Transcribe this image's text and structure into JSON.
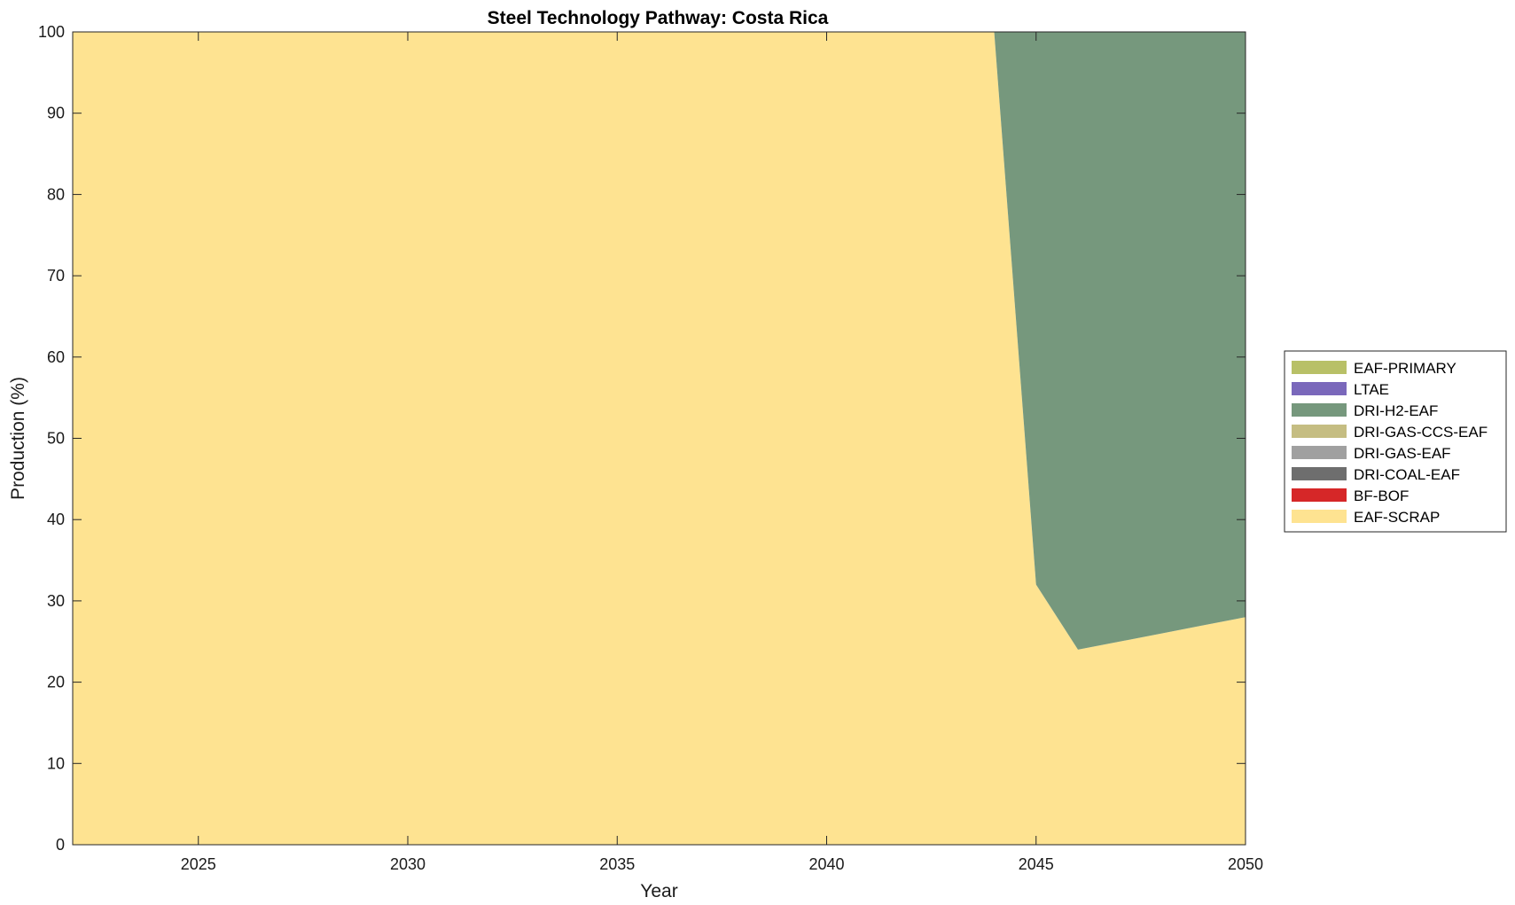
{
  "chart_data": {
    "type": "area",
    "stacked": true,
    "title": "Steel Technology Pathway: Costa Rica",
    "xlabel": "Year",
    "ylabel": "Production (%)",
    "xlim": [
      2022,
      2050
    ],
    "ylim": [
      0,
      100
    ],
    "xticks": [
      2025,
      2030,
      2035,
      2040,
      2045,
      2050
    ],
    "yticks": [
      0,
      10,
      20,
      30,
      40,
      50,
      60,
      70,
      80,
      90,
      100
    ],
    "grid": false,
    "legend_position": "right",
    "x": [
      2022,
      2023,
      2024,
      2025,
      2026,
      2027,
      2028,
      2029,
      2030,
      2031,
      2032,
      2033,
      2034,
      2035,
      2036,
      2037,
      2038,
      2039,
      2040,
      2041,
      2042,
      2043,
      2044,
      2045,
      2046,
      2047,
      2048,
      2049,
      2050
    ],
    "series": [
      {
        "name": "EAF-SCRAP",
        "color": "#fee391",
        "values": [
          100,
          100,
          100,
          100,
          100,
          100,
          100,
          100,
          100,
          100,
          100,
          100,
          100,
          100,
          100,
          100,
          100,
          100,
          100,
          100,
          100,
          100,
          100,
          32,
          24,
          25,
          26,
          27,
          28
        ]
      },
      {
        "name": "BF-BOF",
        "color": "#d62728",
        "values": [
          0,
          0,
          0,
          0,
          0,
          0,
          0,
          0,
          0,
          0,
          0,
          0,
          0,
          0,
          0,
          0,
          0,
          0,
          0,
          0,
          0,
          0,
          0,
          0,
          0,
          0,
          0,
          0,
          0
        ]
      },
      {
        "name": "DRI-COAL-EAF",
        "color": "#6e6e6e",
        "values": [
          0,
          0,
          0,
          0,
          0,
          0,
          0,
          0,
          0,
          0,
          0,
          0,
          0,
          0,
          0,
          0,
          0,
          0,
          0,
          0,
          0,
          0,
          0,
          0,
          0,
          0,
          0,
          0,
          0
        ]
      },
      {
        "name": "DRI-GAS-EAF",
        "color": "#a0a0a0",
        "values": [
          0,
          0,
          0,
          0,
          0,
          0,
          0,
          0,
          0,
          0,
          0,
          0,
          0,
          0,
          0,
          0,
          0,
          0,
          0,
          0,
          0,
          0,
          0,
          0,
          0,
          0,
          0,
          0,
          0
        ]
      },
      {
        "name": "DRI-GAS-CCS-EAF",
        "color": "#c5bd82",
        "values": [
          0,
          0,
          0,
          0,
          0,
          0,
          0,
          0,
          0,
          0,
          0,
          0,
          0,
          0,
          0,
          0,
          0,
          0,
          0,
          0,
          0,
          0,
          0,
          0,
          0,
          0,
          0,
          0,
          0
        ]
      },
      {
        "name": "DRI-H2-EAF",
        "color": "#76987d",
        "values": [
          0,
          0,
          0,
          0,
          0,
          0,
          0,
          0,
          0,
          0,
          0,
          0,
          0,
          0,
          0,
          0,
          0,
          0,
          0,
          0,
          0,
          0,
          0,
          68,
          76,
          75,
          74,
          73,
          72
        ]
      },
      {
        "name": "LTAE",
        "color": "#7a68bb",
        "values": [
          0,
          0,
          0,
          0,
          0,
          0,
          0,
          0,
          0,
          0,
          0,
          0,
          0,
          0,
          0,
          0,
          0,
          0,
          0,
          0,
          0,
          0,
          0,
          0,
          0,
          0,
          0,
          0,
          0
        ]
      },
      {
        "name": "EAF-PRIMARY",
        "color": "#b8c067",
        "values": [
          0,
          0,
          0,
          0,
          0,
          0,
          0,
          0,
          0,
          0,
          0,
          0,
          0,
          0,
          0,
          0,
          0,
          0,
          0,
          0,
          0,
          0,
          0,
          0,
          0,
          0,
          0,
          0,
          0
        ]
      }
    ],
    "legend_order": [
      "EAF-PRIMARY",
      "LTAE",
      "DRI-H2-EAF",
      "DRI-GAS-CCS-EAF",
      "DRI-GAS-EAF",
      "DRI-COAL-EAF",
      "BF-BOF",
      "EAF-SCRAP"
    ]
  }
}
